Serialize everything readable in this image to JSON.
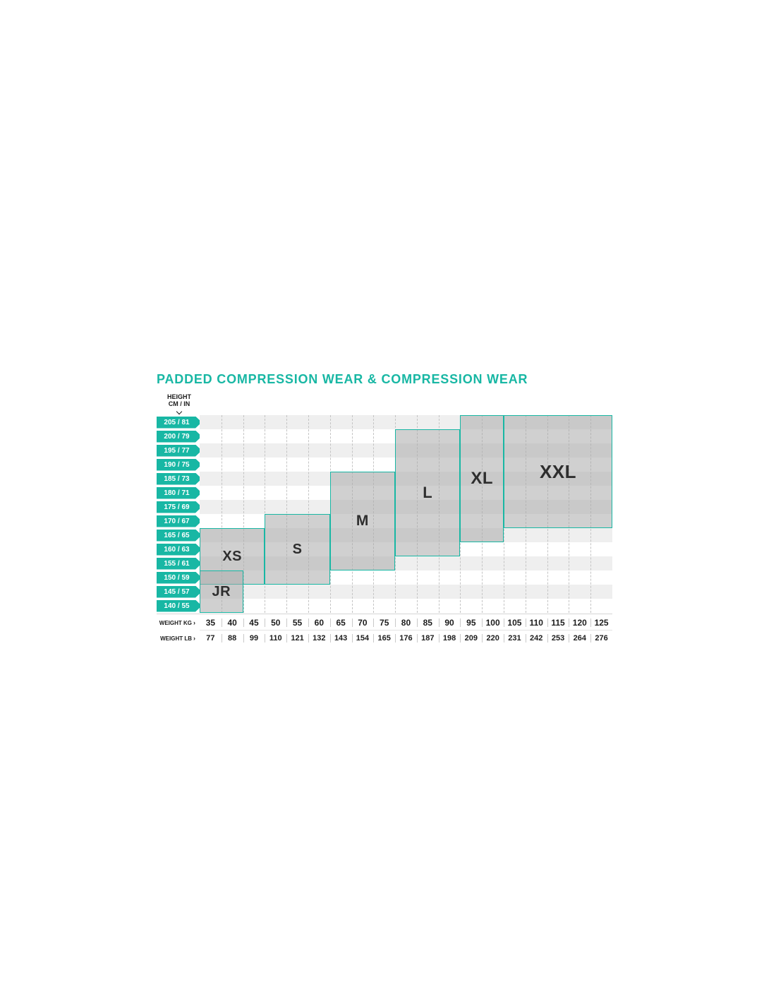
{
  "title": "PADDED COMPRESSION WEAR & COMPRESSION WEAR",
  "colors": {
    "accent": "#18B7A4",
    "stripe": "#EFEFEF",
    "grid": "#C4C4C4",
    "box_fill": "#CBCBCB",
    "text": "#1C1C1C"
  },
  "icons": {
    "axis_arrow": "›"
  },
  "height_axis": {
    "title_line1": "HEIGHT",
    "title_line2": "CM / IN"
  },
  "weight_axis": {
    "kg_label": "WEIGHT KG",
    "lb_label": "WEIGHT LB"
  },
  "chart_data": {
    "type": "heatmap",
    "title": "PADDED COMPRESSION WEAR & COMPRESSION WEAR",
    "x_axis": {
      "label": "WEIGHT KG / WEIGHT LB",
      "kg_ticks": [
        "35",
        "40",
        "45",
        "50",
        "55",
        "60",
        "65",
        "70",
        "75",
        "80",
        "85",
        "90",
        "95",
        "100",
        "105",
        "110",
        "115",
        "120",
        "125"
      ],
      "lb_ticks": [
        "77",
        "88",
        "99",
        "110",
        "121",
        "132",
        "143",
        "154",
        "165",
        "176",
        "187",
        "198",
        "209",
        "220",
        "231",
        "242",
        "253",
        "264",
        "276"
      ]
    },
    "y_axis": {
      "label": "HEIGHT CM / IN",
      "ticks": [
        "205 / 81",
        "200 / 79",
        "195 / 77",
        "190 / 75",
        "185 / 73",
        "180 / 71",
        "175 / 69",
        "170 / 67",
        "165 / 65",
        "160 / 63",
        "155 / 61",
        "150 / 59",
        "145 / 57",
        "140 / 55"
      ]
    },
    "sizes": [
      {
        "label": "JR",
        "weight_kg": [
          35,
          40
        ],
        "weight_lb": [
          77,
          88
        ],
        "height_cm": [
          140,
          150
        ],
        "height_in": [
          55,
          59
        ],
        "grid": {
          "c0": 0,
          "c1": 2,
          "r0": 11,
          "r1": 14
        }
      },
      {
        "label": "XS",
        "weight_kg": [
          35,
          45
        ],
        "weight_lb": [
          77,
          99
        ],
        "height_cm": [
          150,
          165
        ],
        "height_in": [
          59,
          65
        ],
        "grid": {
          "c0": 0,
          "c1": 3,
          "r0": 8,
          "r1": 12
        }
      },
      {
        "label": "S",
        "weight_kg": [
          50,
          60
        ],
        "weight_lb": [
          110,
          132
        ],
        "height_cm": [
          150,
          170
        ],
        "height_in": [
          59,
          67
        ],
        "grid": {
          "c0": 3,
          "c1": 6,
          "r0": 7,
          "r1": 12
        }
      },
      {
        "label": "M",
        "weight_kg": [
          65,
          75
        ],
        "weight_lb": [
          143,
          165
        ],
        "height_cm": [
          155,
          185
        ],
        "height_in": [
          61,
          73
        ],
        "grid": {
          "c0": 6,
          "c1": 9,
          "r0": 4,
          "r1": 11
        }
      },
      {
        "label": "L",
        "weight_kg": [
          80,
          90
        ],
        "weight_lb": [
          176,
          198
        ],
        "height_cm": [
          160,
          200
        ],
        "height_in": [
          63,
          79
        ],
        "grid": {
          "c0": 9,
          "c1": 12,
          "r0": 1,
          "r1": 10
        }
      },
      {
        "label": "XL",
        "weight_kg": [
          95,
          100
        ],
        "weight_lb": [
          209,
          220
        ],
        "height_cm": [
          165,
          205
        ],
        "height_in": [
          65,
          81
        ],
        "grid": {
          "c0": 12,
          "c1": 14,
          "r0": 0,
          "r1": 9
        }
      },
      {
        "label": "XXL",
        "weight_kg": [
          105,
          125
        ],
        "weight_lb": [
          231,
          276
        ],
        "height_cm": [
          170,
          205
        ],
        "height_in": [
          67,
          81
        ],
        "grid": {
          "c0": 14,
          "c1": 19,
          "r0": 0,
          "r1": 8
        }
      }
    ]
  }
}
